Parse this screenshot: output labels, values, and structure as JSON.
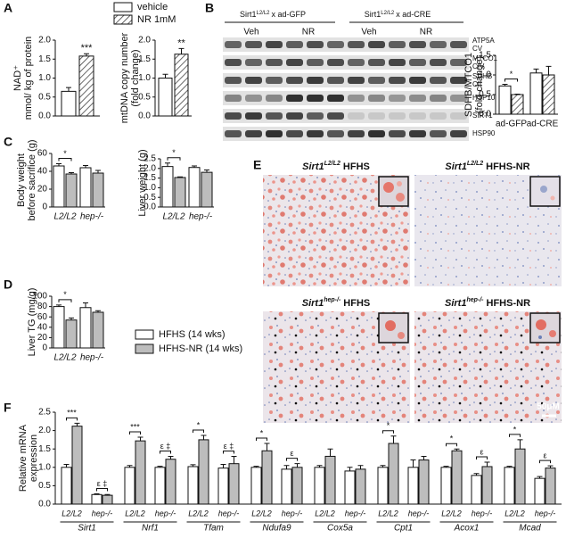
{
  "panel_labels": [
    "A",
    "B",
    "C",
    "D",
    "E",
    "F"
  ],
  "blot": {
    "groups": [
      {
        "gene": "Sirt1",
        "genotype": "L2/L2",
        "rest": "x ad-GFP"
      },
      {
        "gene": "Sirt1",
        "genotype": "L2/L2",
        "rest": "x ad-CRE"
      }
    ],
    "lanes": [
      "Veh",
      "NR",
      "Veh",
      "NR"
    ],
    "proteins": [
      [
        "ATP5A",
        "CV"
      ],
      [
        "MTCO1",
        "CIV"
      ],
      [
        "SDHB",
        "CII"
      ],
      [
        "HSP10"
      ],
      [
        "SIRT1"
      ],
      [
        "HSP90"
      ]
    ]
  },
  "histology": {
    "panels": [
      {
        "gene": "Sirt1",
        "genotype": "L2/L2",
        "diet": "HFHS"
      },
      {
        "gene": "Sirt1",
        "genotype": "L2/L2",
        "diet": "HFHS-NR"
      },
      {
        "gene": "Sirt1",
        "genotype": "hep-/-",
        "diet": "HFHS"
      },
      {
        "gene": "Sirt1",
        "genotype": "hep-/-",
        "diet": "HFHS-NR"
      }
    ],
    "scale_bar": "50μM"
  },
  "chart_data": [
    {
      "type": "bar",
      "y_label": [
        "NAD⁺",
        "mmol/ kg of protein"
      ],
      "series": [
        {
          "name": "vehicle",
          "color": "#ffffff",
          "pattern": "none",
          "values": [
            0.65
          ],
          "errors": [
            0.1
          ]
        },
        {
          "name": "NR 1mM",
          "color": "#ffffff",
          "pattern": "hatch",
          "values": [
            1.58
          ],
          "errors": [
            0.06
          ]
        }
      ],
      "ylim": [
        0,
        2
      ],
      "yticks": [
        {
          "value": 0,
          "label": "0.0"
        },
        0.5,
        {
          "value": 1,
          "label": "1.0"
        },
        1.5,
        {
          "value": 2,
          "label": "2.0"
        }
      ],
      "annotations": [
        "***"
      ]
    },
    {
      "type": "bar",
      "y_label": [
        "mtDNA copy number",
        "(fold change)"
      ],
      "series": [
        {
          "color": "#ffffff",
          "pattern": "none",
          "values": [
            1.0
          ],
          "errors": [
            0.1
          ]
        },
        {
          "color": "#ffffff",
          "pattern": "hatch",
          "values": [
            1.63
          ],
          "errors": [
            0.15
          ]
        }
      ],
      "ylim": [
        0,
        2
      ],
      "yticks": [
        {
          "value": 0,
          "label": "0.0"
        },
        0.5,
        {
          "value": 1,
          "label": "1.0"
        },
        1.5,
        {
          "value": 2,
          "label": "2.0"
        }
      ],
      "annotations": [
        "**"
      ]
    },
    {
      "type": "bar",
      "y_label": [
        "SDHB/MTCO1",
        "(fold change)"
      ],
      "categories": [
        "ad-GFP",
        "ad-CRE"
      ],
      "series": [
        {
          "color": "#ffffff",
          "pattern": "none",
          "values": [
            0.72,
            1.05
          ],
          "errors": [
            0.04,
            0.1
          ]
        },
        {
          "color": "#ffffff",
          "pattern": "hatch",
          "values": [
            0.5,
            1.0
          ],
          "errors": [
            0.01,
            0.22
          ]
        }
      ],
      "ylim": [
        0,
        1.5
      ],
      "yticks": [
        {
          "value": 0,
          "label": "0.0"
        },
        0.5,
        {
          "value": 1,
          "label": "1.0"
        },
        1.5
      ],
      "annotations": [
        "*",
        null
      ]
    },
    {
      "type": "bar",
      "y_label": [
        "Body weight",
        "before sacrifice (g)"
      ],
      "categories": [
        "L2/L2",
        "hep-/-"
      ],
      "series": [
        {
          "color": "#ffffff",
          "pattern": "none",
          "values": [
            46,
            44
          ],
          "errors": [
            2.5,
            2.5
          ]
        },
        {
          "color": "#bdbdbd",
          "pattern": "none",
          "values": [
            37,
            38
          ],
          "errors": [
            1.5,
            3
          ]
        }
      ],
      "ylim": [
        0,
        60
      ],
      "yticks": [
        0,
        20,
        40,
        60
      ],
      "annotations": [
        "*",
        null
      ]
    },
    {
      "type": "bar",
      "y_label": [
        "Liver weight (g)"
      ],
      "categories": [
        "L2/L2",
        "hep-/-"
      ],
      "series": [
        {
          "color": "#ffffff",
          "pattern": "none",
          "values": [
            2.1,
            2.05
          ],
          "errors": [
            0.18,
            0.08
          ]
        },
        {
          "color": "#bdbdbd",
          "pattern": "none",
          "values": [
            1.53,
            1.8
          ],
          "errors": [
            0.03,
            0.12
          ]
        }
      ],
      "ylim": [
        0,
        2.5
      ],
      "yticks": [
        {
          "value": 0,
          "label": "0.0"
        },
        0.5,
        {
          "value": 1,
          "label": "1.0"
        },
        1.5,
        {
          "value": 2,
          "label": "2.0"
        },
        2.5
      ],
      "annotations": [
        "*",
        null
      ]
    },
    {
      "type": "bar",
      "y_label": [
        "Liver TG (mg/g)"
      ],
      "categories": [
        "L2/L2",
        "hep-/-"
      ],
      "series": [
        {
          "name": "HFHS (14 wks)",
          "color": "#ffffff",
          "pattern": "none",
          "values": [
            80,
            78
          ],
          "errors": [
            3,
            9
          ]
        },
        {
          "name": "HFHS-NR (14 wks)",
          "color": "#bdbdbd",
          "pattern": "none",
          "values": [
            54,
            69
          ],
          "errors": [
            4,
            3
          ]
        }
      ],
      "ylim": [
        0,
        100
      ],
      "yticks": [
        0,
        20,
        40,
        60,
        80,
        100
      ],
      "annotations": [
        "*",
        null
      ]
    },
    {
      "type": "bar",
      "y_label": [
        "Relative mRNA",
        "expression"
      ],
      "categories": [
        "Sirt1",
        "Nrf1",
        "Tfam",
        "Ndufa9",
        "Cox5a",
        "Cpt1",
        "Acox1",
        "Mcad"
      ],
      "sublabels": [
        "L2/L2",
        "hep-/-"
      ],
      "series": [
        {
          "color": "#ffffff",
          "pattern": "none",
          "values": [
            1.0,
            1.0,
            1.02,
            1.0,
            1.0,
            1.0,
            1.0,
            1.0
          ],
          "errors": [
            0.08,
            0.05,
            0.05,
            0.03,
            0.05,
            0.05,
            0.03,
            0.03
          ]
        },
        {
          "color": "#bdbdbd",
          "pattern": "none",
          "values": [
            2.12,
            1.72,
            1.75,
            1.45,
            1.3,
            1.65,
            1.45,
            1.5
          ],
          "errors": [
            0.08,
            0.1,
            0.12,
            0.2,
            0.2,
            0.2,
            0.05,
            0.25
          ]
        },
        {
          "color": "#ffffff",
          "pattern": "none",
          "values": [
            0.26,
            1.0,
            0.98,
            0.95,
            0.9,
            1.0,
            0.78,
            0.7
          ],
          "errors": [
            0.02,
            0.03,
            0.1,
            0.1,
            0.1,
            0.2,
            0.05,
            0.05
          ]
        },
        {
          "color": "#bdbdbd",
          "pattern": "none",
          "values": [
            0.24,
            1.22,
            1.1,
            1.0,
            0.95,
            1.2,
            1.02,
            0.98
          ],
          "errors": [
            0.02,
            0.08,
            0.2,
            0.1,
            0.1,
            0.1,
            0.12,
            0.06
          ]
        }
      ],
      "ylim": [
        0,
        2.5
      ],
      "yticks": [
        {
          "value": 0,
          "label": "0.0"
        },
        0.5,
        {
          "value": 1,
          "label": "1.0"
        },
        1.5,
        {
          "value": 2,
          "label": "2.0"
        },
        2.5
      ],
      "annotations": [
        [
          "***",
          "ε ‡"
        ],
        [
          "***",
          "ε ‡"
        ],
        [
          "*",
          "ε ‡"
        ],
        [
          "*",
          "ε"
        ],
        [
          null,
          null
        ],
        [
          "*",
          null
        ],
        [
          "*",
          "ε"
        ],
        [
          "*",
          "ε"
        ]
      ]
    }
  ]
}
